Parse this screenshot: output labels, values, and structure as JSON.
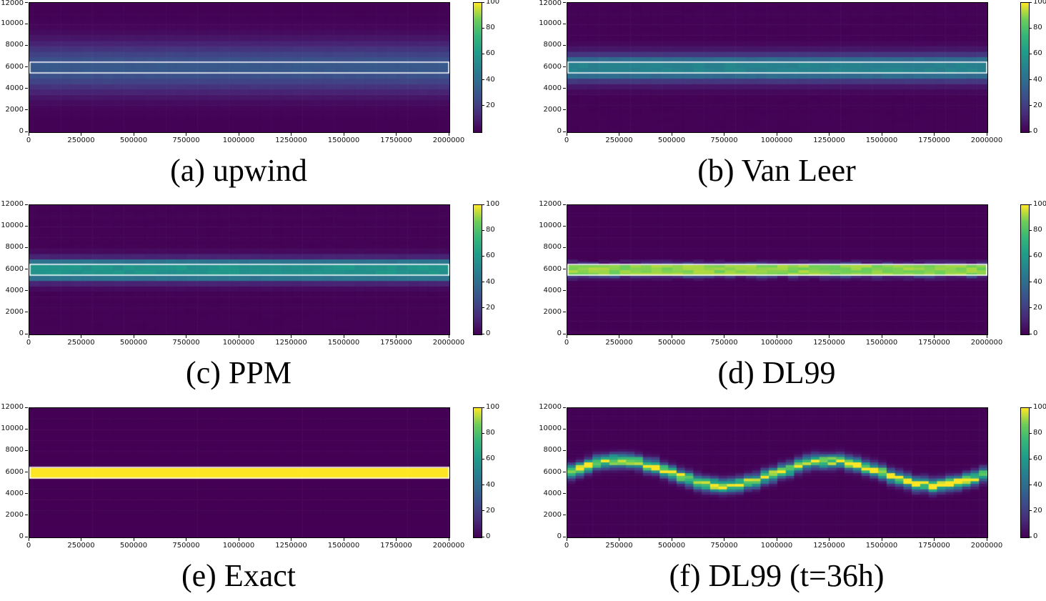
{
  "figure": {
    "background": "#ffffff",
    "text_color": "#111111",
    "spine_color": "#000000",
    "overlay_color": "#ffffff",
    "colormap": {
      "name": "viridis",
      "stops": [
        [
          0.0,
          "#440154"
        ],
        [
          0.125,
          "#482878"
        ],
        [
          0.25,
          "#3e4a89"
        ],
        [
          0.375,
          "#31688e"
        ],
        [
          0.5,
          "#26828e"
        ],
        [
          0.625,
          "#1f9e89"
        ],
        [
          0.75,
          "#35b779"
        ],
        [
          0.875,
          "#6ece58"
        ],
        [
          1.0,
          "#fde725"
        ]
      ]
    }
  },
  "chart_data": [
    {
      "type": "heatmap",
      "panel_label": "a",
      "caption": "(a) upwind",
      "xlim": [
        0,
        2000000
      ],
      "ylim": [
        0,
        12000
      ],
      "x_tick_labels": [
        "0",
        "250000",
        "500000",
        "750000",
        "1000000",
        "1250000",
        "1500000",
        "1750000",
        "2000000"
      ],
      "y_tick_labels": [
        "0",
        "2000",
        "4000",
        "6000",
        "8000",
        "10000",
        "12000"
      ],
      "colorbar": {
        "min": 0,
        "max": 100,
        "tick_values": [
          20,
          40,
          60,
          80,
          100
        ]
      },
      "overlay_rect": {
        "x0": 0,
        "x1": 2000000,
        "y0": 5500,
        "y1": 6500
      },
      "field": {
        "kind": "gaussian_band",
        "center": 6000,
        "sigma": 1550,
        "peak": 31,
        "floor": 0.2,
        "xcell": 50000,
        "ycell": 500,
        "noise": 0.05,
        "seed": 1
      }
    },
    {
      "type": "heatmap",
      "panel_label": "b",
      "caption": "(b) Van Leer",
      "xlim": [
        0,
        2000000
      ],
      "ylim": [
        0,
        12000
      ],
      "x_tick_labels": [
        "0",
        "250000",
        "500000",
        "750000",
        "1000000",
        "1250000",
        "1500000",
        "1750000",
        "2000000"
      ],
      "y_tick_labels": [
        "0",
        "2000",
        "4000",
        "6000",
        "8000",
        "10000",
        "12000"
      ],
      "colorbar": {
        "min": 0,
        "max": 100,
        "tick_values": [
          0,
          20,
          40,
          60,
          80,
          100
        ]
      },
      "overlay_rect": {
        "x0": 0,
        "x1": 2000000,
        "y0": 5500,
        "y1": 6500
      },
      "field": {
        "kind": "step_band",
        "bands": [
          {
            "y0": 5500,
            "y1": 6500,
            "v": 50
          },
          {
            "y0": 6500,
            "y1": 7000,
            "v": 39
          },
          {
            "y0": 5000,
            "y1": 5500,
            "v": 39
          },
          {
            "y0": 7000,
            "y1": 7500,
            "v": 18
          },
          {
            "y0": 4500,
            "y1": 5000,
            "v": 18
          },
          {
            "y0": 7500,
            "y1": 8000,
            "v": 7
          },
          {
            "y0": 4000,
            "y1": 4500,
            "v": 7
          },
          {
            "y0": 8000,
            "y1": 8500,
            "v": 2.5
          },
          {
            "y0": 3500,
            "y1": 4000,
            "v": 2.5
          }
        ],
        "background": 0.5,
        "xcell": 50000,
        "ycell": 500,
        "noise": 0.1,
        "seed": 2
      }
    },
    {
      "type": "heatmap",
      "panel_label": "c",
      "caption": "(c) PPM",
      "xlim": [
        0,
        2000000
      ],
      "ylim": [
        0,
        12000
      ],
      "x_tick_labels": [
        "0",
        "250000",
        "500000",
        "750000",
        "1000000",
        "1250000",
        "1500000",
        "1750000",
        "2000000"
      ],
      "y_tick_labels": [
        "0",
        "2000",
        "4000",
        "6000",
        "8000",
        "10000",
        "12000"
      ],
      "colorbar": {
        "min": 0,
        "max": 100,
        "tick_values": [
          0,
          20,
          40,
          60,
          80,
          100
        ]
      },
      "overlay_rect": {
        "x0": 0,
        "x1": 2000000,
        "y0": 5500,
        "y1": 6500
      },
      "field": {
        "kind": "step_band",
        "bands": [
          {
            "y0": 5500,
            "y1": 6500,
            "v": 58
          },
          {
            "y0": 6500,
            "y1": 7000,
            "v": 43
          },
          {
            "y0": 5000,
            "y1": 5500,
            "v": 43
          },
          {
            "y0": 7000,
            "y1": 7500,
            "v": 11
          },
          {
            "y0": 4500,
            "y1": 5000,
            "v": 11
          },
          {
            "y0": 7500,
            "y1": 8000,
            "v": 3
          },
          {
            "y0": 4000,
            "y1": 4500,
            "v": 3
          }
        ],
        "background": 0.5,
        "xcell": 50000,
        "ycell": 500,
        "noise": 0.1,
        "seed": 3
      }
    },
    {
      "type": "heatmap",
      "panel_label": "d",
      "caption": "(d) DL99",
      "xlim": [
        0,
        2000000
      ],
      "ylim": [
        0,
        12000
      ],
      "x_tick_labels": [
        "0",
        "250000",
        "500000",
        "750000",
        "1000000",
        "1250000",
        "1500000",
        "1750000",
        "2000000"
      ],
      "y_tick_labels": [
        "0",
        "2000",
        "4000",
        "6000",
        "8000",
        "10000",
        "12000"
      ],
      "colorbar": {
        "min": 0,
        "max": 100,
        "tick_values": [
          0,
          20,
          40,
          60,
          80,
          100
        ]
      },
      "overlay_rect": {
        "x0": 0,
        "x1": 2000000,
        "y0": 5500,
        "y1": 6500
      },
      "field": {
        "kind": "step_band",
        "bands": [
          {
            "y0": 5500,
            "y1": 6500,
            "v": 90
          }
        ],
        "noise_bands": [
          {
            "y0": 5250,
            "y1": 5500,
            "vmin": 6,
            "vmax": 26
          },
          {
            "y0": 6500,
            "y1": 6750,
            "vmin": 4,
            "vmax": 24
          },
          {
            "y0": 5000,
            "y1": 5250,
            "vmin": 1,
            "vmax": 9
          },
          {
            "y0": 6750,
            "y1": 7000,
            "vmin": 1,
            "vmax": 9
          }
        ],
        "background": 0.3,
        "xcell": 50000,
        "ycell": 250,
        "noise": 0.08,
        "seed": 4
      }
    },
    {
      "type": "heatmap",
      "panel_label": "e",
      "caption": "(e) Exact",
      "xlim": [
        0,
        2000000
      ],
      "ylim": [
        0,
        12000
      ],
      "x_tick_labels": [
        "0",
        "250000",
        "500000",
        "750000",
        "1000000",
        "1250000",
        "1500000",
        "1750000",
        "2000000"
      ],
      "y_tick_labels": [
        "0",
        "2000",
        "4000",
        "6000",
        "8000",
        "10000",
        "12000"
      ],
      "colorbar": {
        "min": 0,
        "max": 100,
        "tick_values": [
          0,
          20,
          40,
          60,
          80,
          100
        ]
      },
      "overlay_rect": {
        "x0": 0,
        "x1": 2000000,
        "y0": 5500,
        "y1": 6500
      },
      "field": {
        "kind": "step_band",
        "bands": [
          {
            "y0": 5500,
            "y1": 6500,
            "v": 100
          }
        ],
        "background": 0,
        "xcell": 100000,
        "ycell": 500,
        "noise": 0,
        "seed": 5
      }
    },
    {
      "type": "heatmap",
      "panel_label": "f",
      "caption": "(f) DL99 (t=36h)",
      "xlim": [
        0,
        2000000
      ],
      "ylim": [
        0,
        12000
      ],
      "x_tick_labels": [
        "0",
        "250000",
        "500000",
        "750000",
        "1000000",
        "1250000",
        "1500000",
        "1750000",
        "2000000"
      ],
      "y_tick_labels": [
        "0",
        "2000",
        "4000",
        "6000",
        "8000",
        "10000",
        "12000"
      ],
      "colorbar": {
        "min": 0,
        "max": 100,
        "tick_values": [
          0,
          20,
          40,
          60,
          80,
          100
        ]
      },
      "overlay_rect": null,
      "field": {
        "kind": "wave_band",
        "center": 6000,
        "amplitude": 1150,
        "wavelength": 1000000,
        "peak": 97,
        "sigma": 400,
        "background": 0.3,
        "xcell": 40000,
        "ycell": 250,
        "noise": 0.5,
        "seed": 6
      }
    }
  ]
}
